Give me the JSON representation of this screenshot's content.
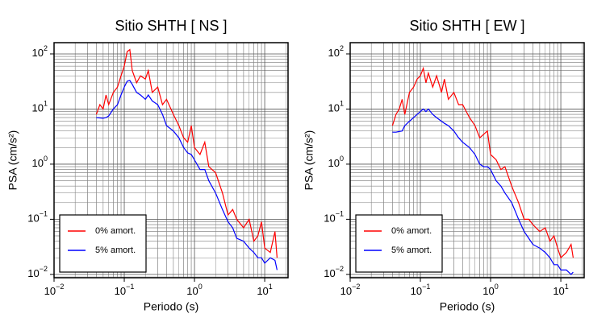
{
  "chart_data": [
    {
      "type": "line",
      "title": "Sitio SHTH [ NS ]",
      "xlabel": "Periodo (s)",
      "ylabel": "PSA (cm/s²)",
      "log_x": true,
      "log_y": true,
      "grid": true,
      "legend": "lower left",
      "xlim": [
        0.01,
        21.5
      ],
      "ylim": [
        0.0087,
        160
      ],
      "xticks": [
        {
          "value": 0.01,
          "label": "10",
          "exponent": "−2"
        },
        {
          "value": 0.1,
          "label": "10",
          "exponent": "−1"
        },
        {
          "value": 1,
          "label": "10",
          "exponent": "0"
        },
        {
          "value": 10,
          "label": "10",
          "exponent": "1"
        }
      ],
      "yticks": [
        {
          "value": 0.01,
          "label": "10",
          "exponent": "−2"
        },
        {
          "value": 0.1,
          "label": "10",
          "exponent": "−1"
        },
        {
          "value": 1,
          "label": "10",
          "exponent": "0"
        },
        {
          "value": 10,
          "label": "10",
          "exponent": "1"
        },
        {
          "value": 100,
          "label": "10",
          "exponent": "2"
        }
      ],
      "x": [
        0.04,
        0.045,
        0.05,
        0.055,
        0.06,
        0.07,
        0.08,
        0.09,
        0.1,
        0.11,
        0.12,
        0.13,
        0.15,
        0.17,
        0.2,
        0.22,
        0.25,
        0.3,
        0.35,
        0.4,
        0.5,
        0.6,
        0.7,
        0.8,
        0.9,
        1,
        1.2,
        1.4,
        1.6,
        2,
        2.5,
        3,
        3.5,
        4,
        5,
        6,
        7,
        8,
        9,
        10,
        12,
        14,
        15
      ],
      "series": [
        {
          "name": "0% amort.",
          "color": "#ff0000",
          "values": [
            8,
            12,
            10,
            18,
            12,
            20,
            25,
            40,
            60,
            110,
            120,
            50,
            30,
            40,
            35,
            50,
            20,
            25,
            12,
            15,
            8,
            5,
            3,
            2.5,
            5,
            2,
            1.5,
            2.5,
            0.9,
            0.7,
            0.3,
            0.12,
            0.15,
            0.1,
            0.07,
            0.1,
            0.04,
            0.05,
            0.09,
            0.03,
            0.025,
            0.06,
            0.02
          ]
        },
        {
          "name": "5% amort.",
          "color": "#0000ff",
          "values": [
            7,
            6.9,
            6.8,
            7,
            7.5,
            10,
            12,
            18,
            25,
            32,
            33,
            28,
            20,
            18,
            15,
            18,
            14,
            12,
            8,
            5,
            4,
            3,
            2,
            1.6,
            1.5,
            1.2,
            0.8,
            0.8,
            0.5,
            0.3,
            0.15,
            0.09,
            0.07,
            0.045,
            0.04,
            0.03,
            0.025,
            0.02,
            0.02,
            0.016,
            0.02,
            0.018,
            0.012
          ]
        }
      ]
    },
    {
      "type": "line",
      "title": "Sitio SHTH [ EW ]",
      "xlabel": "Periodo (s)",
      "ylabel": "PSA (cm/s²)",
      "log_x": true,
      "log_y": true,
      "grid": true,
      "legend": "lower left",
      "xlim": [
        0.01,
        21.5
      ],
      "ylim": [
        0.0087,
        160
      ],
      "xticks": [
        {
          "value": 0.01,
          "label": "10",
          "exponent": "−2"
        },
        {
          "value": 0.1,
          "label": "10",
          "exponent": "−1"
        },
        {
          "value": 1,
          "label": "10",
          "exponent": "0"
        },
        {
          "value": 10,
          "label": "10",
          "exponent": "1"
        }
      ],
      "yticks": [
        {
          "value": 0.01,
          "label": "10",
          "exponent": "−2"
        },
        {
          "value": 0.1,
          "label": "10",
          "exponent": "−1"
        },
        {
          "value": 1,
          "label": "10",
          "exponent": "0"
        },
        {
          "value": 10,
          "label": "10",
          "exponent": "1"
        },
        {
          "value": 100,
          "label": "10",
          "exponent": "2"
        }
      ],
      "x": [
        0.04,
        0.045,
        0.05,
        0.055,
        0.06,
        0.07,
        0.08,
        0.09,
        0.1,
        0.11,
        0.12,
        0.13,
        0.15,
        0.17,
        0.2,
        0.22,
        0.25,
        0.3,
        0.35,
        0.4,
        0.5,
        0.6,
        0.7,
        0.8,
        0.9,
        1,
        1.2,
        1.4,
        1.6,
        2,
        2.5,
        3,
        3.5,
        4,
        5,
        6,
        7,
        8,
        9,
        10,
        12,
        14,
        15
      ],
      "series": [
        {
          "name": "0% amort.",
          "color": "#ff0000",
          "values": [
            5,
            8,
            10,
            15,
            8,
            20,
            25,
            35,
            40,
            55,
            30,
            45,
            25,
            40,
            20,
            35,
            15,
            20,
            12,
            12,
            7,
            5,
            3,
            3.5,
            4,
            1.5,
            1.2,
            0.8,
            0.9,
            0.4,
            0.2,
            0.1,
            0.1,
            0.08,
            0.06,
            0.07,
            0.04,
            0.05,
            0.03,
            0.02,
            0.025,
            0.035,
            0.02
          ]
        },
        {
          "name": "5% amort.",
          "color": "#0000ff",
          "values": [
            3.8,
            3.8,
            3.9,
            4,
            5,
            6,
            7,
            8,
            9,
            10,
            9,
            10,
            8,
            7,
            6,
            5.5,
            5,
            4,
            3,
            2.5,
            2,
            1.5,
            1,
            0.9,
            0.9,
            0.8,
            0.5,
            0.4,
            0.3,
            0.2,
            0.1,
            0.06,
            0.045,
            0.035,
            0.03,
            0.025,
            0.02,
            0.015,
            0.015,
            0.012,
            0.012,
            0.01,
            0.011
          ]
        }
      ]
    }
  ]
}
